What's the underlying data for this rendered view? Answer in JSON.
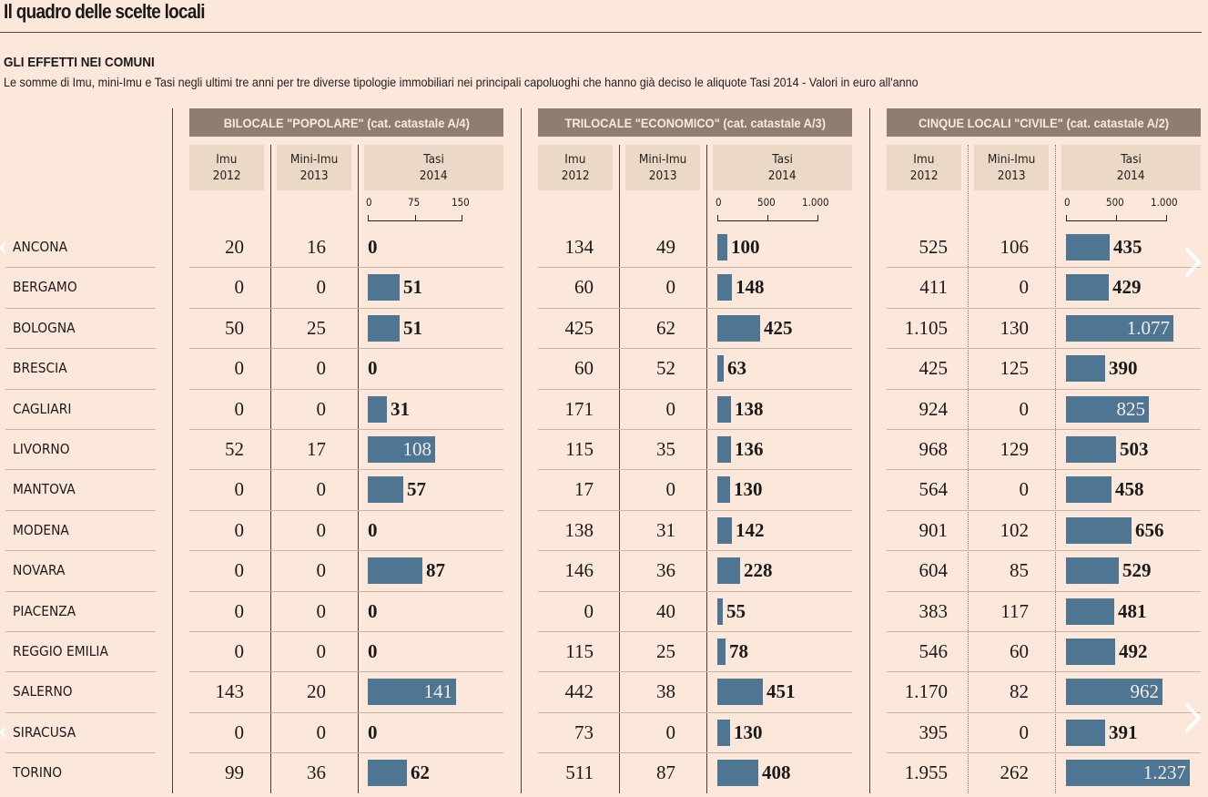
{
  "header": {
    "title": "Il quadro delle scelte locali",
    "subtitle": "GLI EFFETTI NEI COMUNI",
    "description": "Le somme di Imu, mini-Imu e Tasi negli ultimi tre anni per tre diverse tipologie immobiliari nei principali capoluoghi che hanno già deciso le aliquote Tasi 2014 - Valori in euro all'anno"
  },
  "colors": {
    "background": "#fbe8da",
    "group_header": "#8f7e6f",
    "column_header": "#ecd8c6",
    "bar": "#4e7592"
  },
  "column_labels": {
    "imu": [
      "Imu",
      "2012"
    ],
    "mini_imu": [
      "Mini-Imu",
      "2013"
    ],
    "tasi": [
      "Tasi",
      "2014"
    ]
  },
  "groups": [
    {
      "title": "BILOCALE \"POPOLARE\" (cat. catastale A/4)",
      "axis_ticks": [
        "0",
        "75",
        "150"
      ],
      "axis_max": 150
    },
    {
      "title": "TRILOCALE \"ECONOMICO\" (cat. catastale A/3)",
      "axis_ticks": [
        "0",
        "500",
        "1.000"
      ],
      "axis_max": 1000
    },
    {
      "title": "CINQUE LOCALI \"CIVILE\" (cat. catastale A/2)",
      "axis_ticks": [
        "0",
        "500",
        "1.000"
      ],
      "axis_max": 1000
    }
  ],
  "chart_data": {
    "type": "table",
    "title": "Il quadro delle scelte locali",
    "subtitle": "GLI EFFETTI NEI COMUNI",
    "units": "euro all'anno",
    "categories": [
      "ANCONA",
      "BERGAMO",
      "BOLOGNA",
      "BRESCIA",
      "CAGLIARI",
      "LIVORNO",
      "MANTOVA",
      "MODENA",
      "NOVARA",
      "PIACENZA",
      "REGGIO EMILIA",
      "SALERNO",
      "SIRACUSA",
      "TORINO"
    ],
    "groups": [
      {
        "name": "BILOCALE \"POPOLARE\" (cat. catastale A/4)",
        "series": [
          {
            "name": "Imu 2012",
            "values": [
              20,
              0,
              50,
              0,
              0,
              52,
              0,
              0,
              0,
              0,
              0,
              143,
              0,
              99
            ],
            "labels": [
              "20",
              "0",
              "50",
              "0",
              "0",
              "52",
              "0",
              "0",
              "0",
              "0",
              "0",
              "143",
              "0",
              "99"
            ]
          },
          {
            "name": "Mini-Imu 2013",
            "values": [
              16,
              0,
              25,
              0,
              0,
              17,
              0,
              0,
              0,
              0,
              0,
              20,
              0,
              36
            ],
            "labels": [
              "16",
              "0",
              "25",
              "0",
              "0",
              "17",
              "0",
              "0",
              "0",
              "0",
              "0",
              "20",
              "0",
              "36"
            ]
          },
          {
            "name": "Tasi 2014",
            "values": [
              0,
              51,
              51,
              0,
              31,
              108,
              57,
              0,
              87,
              0,
              0,
              141,
              0,
              62
            ],
            "labels": [
              "0",
              "51",
              "51",
              "0",
              "31",
              "108",
              "57",
              "0",
              "87",
              "0",
              "0",
              "141",
              "0",
              "62"
            ],
            "bar": true,
            "xlim": [
              0,
              150
            ]
          }
        ]
      },
      {
        "name": "TRILOCALE \"ECONOMICO\" (cat. catastale A/3)",
        "series": [
          {
            "name": "Imu 2012",
            "values": [
              134,
              60,
              425,
              60,
              171,
              115,
              17,
              138,
              146,
              0,
              115,
              442,
              73,
              511
            ],
            "labels": [
              "134",
              "60",
              "425",
              "60",
              "171",
              "115",
              "17",
              "138",
              "146",
              "0",
              "115",
              "442",
              "73",
              "511"
            ]
          },
          {
            "name": "Mini-Imu 2013",
            "values": [
              49,
              0,
              62,
              52,
              0,
              35,
              0,
              31,
              36,
              40,
              25,
              38,
              0,
              87
            ],
            "labels": [
              "49",
              "0",
              "62",
              "52",
              "0",
              "35",
              "0",
              "31",
              "36",
              "40",
              "25",
              "38",
              "0",
              "87"
            ]
          },
          {
            "name": "Tasi 2014",
            "values": [
              100,
              148,
              425,
              63,
              138,
              136,
              130,
              142,
              228,
              55,
              78,
              451,
              130,
              408
            ],
            "labels": [
              "100",
              "148",
              "425",
              "63",
              "138",
              "136",
              "130",
              "142",
              "228",
              "55",
              "78",
              "451",
              "130",
              "408"
            ],
            "bar": true,
            "xlim": [
              0,
              1000
            ]
          }
        ]
      },
      {
        "name": "CINQUE LOCALI \"CIVILE\" (cat. catastale A/2)",
        "series": [
          {
            "name": "Imu 2012",
            "values": [
              525,
              411,
              1105,
              425,
              924,
              968,
              564,
              901,
              604,
              383,
              546,
              1170,
              395,
              1955
            ],
            "labels": [
              "525",
              "411",
              "1.105",
              "425",
              "924",
              "968",
              "564",
              "901",
              "604",
              "383",
              "546",
              "1.170",
              "395",
              "1.955"
            ]
          },
          {
            "name": "Mini-Imu 2013",
            "values": [
              106,
              0,
              130,
              125,
              0,
              129,
              0,
              102,
              85,
              117,
              60,
              82,
              0,
              262
            ],
            "labels": [
              "106",
              "0",
              "130",
              "125",
              "0",
              "129",
              "0",
              "102",
              "85",
              "117",
              "60",
              "82",
              "0",
              "262"
            ]
          },
          {
            "name": "Tasi 2014",
            "values": [
              435,
              429,
              1077,
              390,
              825,
              503,
              458,
              656,
              529,
              481,
              492,
              962,
              391,
              1237
            ],
            "labels": [
              "435",
              "429",
              "1.077",
              "390",
              "825",
              "503",
              "458",
              "656",
              "529",
              "481",
              "492",
              "962",
              "391",
              "1.237"
            ],
            "bar": true,
            "xlim": [
              0,
              1000
            ]
          }
        ]
      }
    ]
  }
}
